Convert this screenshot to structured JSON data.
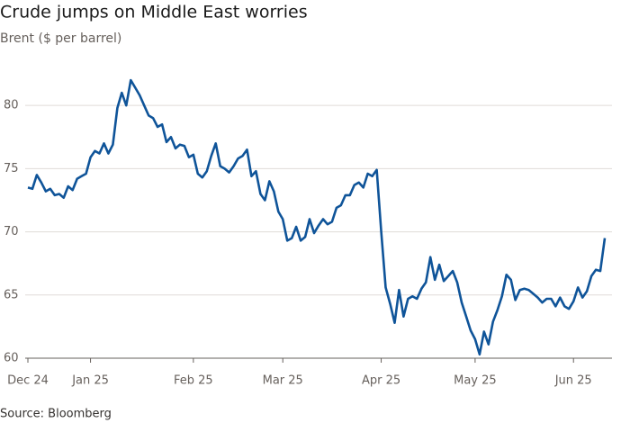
{
  "chart_data": {
    "type": "line",
    "title": "Crude jumps on Middle East worries",
    "subtitle": "Brent ($ per barrel)",
    "source": "Source: Bloomberg",
    "categories": [
      "Dec 24",
      null,
      null,
      null,
      null,
      null,
      null,
      null,
      null,
      null,
      null,
      null,
      null,
      null,
      "Jan 25",
      null,
      null,
      null,
      null,
      null,
      null,
      null,
      null,
      null,
      null,
      null,
      null,
      null,
      null,
      null,
      null,
      null,
      null,
      null,
      null,
      null,
      null,
      "Feb 25",
      null,
      null,
      null,
      null,
      null,
      null,
      null,
      null,
      null,
      null,
      null,
      null,
      null,
      null,
      null,
      null,
      null,
      null,
      null,
      "Mar 25",
      null,
      null,
      null,
      null,
      null,
      null,
      null,
      null,
      null,
      null,
      null,
      null,
      null,
      null,
      null,
      null,
      null,
      null,
      null,
      null,
      null,
      "Apr 25",
      null,
      null,
      null,
      null,
      null,
      null,
      null,
      null,
      null,
      null,
      null,
      null,
      null,
      null,
      null,
      null,
      null,
      null,
      null,
      null,
      "May 25",
      null,
      null,
      null,
      null,
      null,
      null,
      null,
      null,
      null,
      null,
      null,
      null,
      null,
      null,
      null,
      null,
      null,
      null,
      null,
      null,
      null,
      "Jun 25",
      null,
      null,
      null,
      null,
      null,
      null,
      null
    ],
    "series": [
      {
        "name": "Brent",
        "color": "#0f5499",
        "values": [
          73.5,
          73.4,
          74.5,
          73.9,
          73.2,
          73.4,
          72.9,
          73.0,
          72.7,
          73.6,
          73.3,
          74.2,
          74.4,
          74.6,
          75.9,
          76.4,
          76.2,
          77.0,
          76.2,
          76.9,
          79.8,
          81.0,
          80.0,
          82.0,
          81.4,
          80.8,
          80.0,
          79.2,
          79.0,
          78.3,
          78.5,
          77.1,
          77.5,
          76.6,
          76.9,
          76.8,
          75.9,
          76.1,
          74.6,
          74.3,
          74.8,
          76.0,
          77.0,
          75.2,
          75.0,
          74.7,
          75.2,
          75.8,
          76.0,
          76.5,
          74.4,
          74.8,
          73.0,
          72.5,
          74.0,
          73.2,
          71.6,
          71.0,
          69.3,
          69.5,
          70.4,
          69.3,
          69.6,
          71.0,
          69.9,
          70.5,
          71.0,
          70.6,
          70.8,
          71.9,
          72.1,
          72.9,
          72.9,
          73.7,
          73.9,
          73.5,
          74.6,
          74.4,
          74.9,
          70.0,
          65.6,
          64.3,
          62.8,
          65.4,
          63.3,
          64.7,
          64.9,
          64.7,
          65.5,
          66.0,
          68.0,
          66.2,
          67.4,
          66.1,
          66.5,
          66.9,
          66.0,
          64.4,
          63.3,
          62.2,
          61.5,
          60.3,
          62.1,
          61.1,
          62.9,
          63.8,
          64.9,
          66.6,
          66.2,
          64.6,
          65.4,
          65.5,
          65.4,
          65.1,
          64.8,
          64.4,
          64.7,
          64.7,
          64.1,
          64.8,
          64.1,
          63.9,
          64.5,
          65.6,
          64.8,
          65.3,
          66.5,
          67.0,
          66.9,
          69.5
        ]
      }
    ],
    "ylim": [
      60,
      84
    ],
    "yticks": [
      60,
      65,
      70,
      75,
      80
    ],
    "grid": true
  }
}
